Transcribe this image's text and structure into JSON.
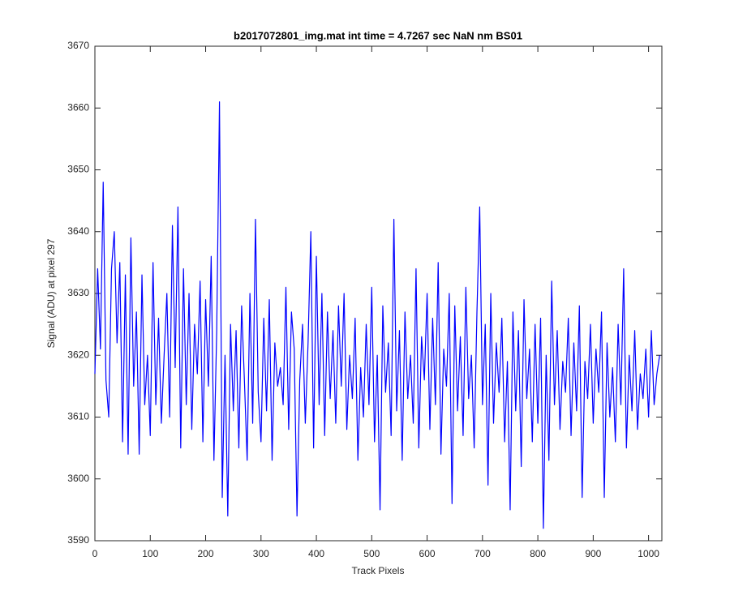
{
  "chart_data": {
    "type": "line",
    "title": "b2017072801_img.mat int time = 4.7267 sec  NaN nm BS01",
    "xlabel": "Track Pixels",
    "ylabel": "Signal (ADU) at pixel 297",
    "xlim": [
      0,
      1024
    ],
    "xticks": [
      0,
      100,
      200,
      300,
      400,
      500,
      600,
      700,
      800,
      900,
      1000
    ],
    "ylim": [
      3590,
      3670
    ],
    "yticks": [
      3590,
      3600,
      3610,
      3620,
      3630,
      3640,
      3650,
      3660,
      3670
    ],
    "grid": false,
    "x": [
      0,
      5,
      10,
      15,
      20,
      25,
      30,
      35,
      40,
      45,
      50,
      55,
      60,
      65,
      70,
      75,
      80,
      85,
      90,
      95,
      100,
      105,
      110,
      115,
      120,
      125,
      130,
      135,
      140,
      145,
      150,
      155,
      160,
      165,
      170,
      175,
      180,
      185,
      190,
      195,
      200,
      205,
      210,
      215,
      220,
      225,
      230,
      235,
      240,
      245,
      250,
      255,
      260,
      265,
      270,
      275,
      280,
      285,
      290,
      295,
      300,
      305,
      310,
      315,
      320,
      325,
      330,
      335,
      340,
      345,
      350,
      355,
      360,
      365,
      370,
      375,
      380,
      385,
      390,
      395,
      400,
      405,
      410,
      415,
      420,
      425,
      430,
      435,
      440,
      445,
      450,
      455,
      460,
      465,
      470,
      475,
      480,
      485,
      490,
      495,
      500,
      505,
      510,
      515,
      520,
      525,
      530,
      535,
      540,
      545,
      550,
      555,
      560,
      565,
      570,
      575,
      580,
      585,
      590,
      595,
      600,
      605,
      610,
      615,
      620,
      625,
      630,
      635,
      640,
      645,
      650,
      655,
      660,
      665,
      670,
      675,
      680,
      685,
      690,
      695,
      700,
      705,
      710,
      715,
      720,
      725,
      730,
      735,
      740,
      745,
      750,
      755,
      760,
      765,
      770,
      775,
      780,
      785,
      790,
      795,
      800,
      805,
      810,
      815,
      820,
      825,
      830,
      835,
      840,
      845,
      850,
      855,
      860,
      865,
      870,
      875,
      880,
      885,
      890,
      895,
      900,
      905,
      910,
      915,
      920,
      925,
      930,
      935,
      940,
      945,
      950,
      955,
      960,
      965,
      970,
      975,
      980,
      985,
      990,
      995,
      1000,
      1005,
      1010,
      1015,
      1020
    ],
    "series": [
      {
        "color": "#0000ff",
        "values": [
          3617,
          3634,
          3621,
          3648,
          3616,
          3610,
          3634,
          3640,
          3622,
          3635,
          3606,
          3633,
          3604,
          3639,
          3615,
          3627,
          3604,
          3633,
          3612,
          3620,
          3607,
          3635,
          3612,
          3626,
          3609,
          3620,
          3630,
          3610,
          3641,
          3618,
          3644,
          3605,
          3634,
          3612,
          3630,
          3608,
          3625,
          3617,
          3632,
          3606,
          3629,
          3615,
          3636,
          3603,
          3624,
          3661,
          3597,
          3620,
          3594,
          3625,
          3611,
          3624,
          3605,
          3628,
          3616,
          3603,
          3630,
          3609,
          3642,
          3614,
          3606,
          3626,
          3611,
          3629,
          3603,
          3622,
          3615,
          3618,
          3612,
          3631,
          3608,
          3627,
          3621,
          3594,
          3616,
          3625,
          3609,
          3622,
          3640,
          3605,
          3636,
          3612,
          3630,
          3607,
          3627,
          3613,
          3624,
          3609,
          3628,
          3615,
          3630,
          3608,
          3620,
          3613,
          3626,
          3603,
          3618,
          3610,
          3625,
          3612,
          3631,
          3606,
          3620,
          3595,
          3628,
          3614,
          3622,
          3607,
          3642,
          3611,
          3624,
          3603,
          3627,
          3613,
          3620,
          3609,
          3634,
          3605,
          3623,
          3616,
          3630,
          3608,
          3626,
          3612,
          3635,
          3604,
          3621,
          3615,
          3630,
          3596,
          3628,
          3611,
          3623,
          3607,
          3631,
          3613,
          3620,
          3605,
          3627,
          3644,
          3612,
          3625,
          3599,
          3630,
          3609,
          3622,
          3614,
          3626,
          3606,
          3619,
          3595,
          3627,
          3611,
          3624,
          3602,
          3629,
          3613,
          3621,
          3606,
          3625,
          3609,
          3626,
          3592,
          3620,
          3603,
          3632,
          3612,
          3624,
          3608,
          3619,
          3614,
          3626,
          3607,
          3622,
          3611,
          3628,
          3597,
          3619,
          3613,
          3625,
          3609,
          3621,
          3614,
          3627,
          3597,
          3622,
          3610,
          3618,
          3606,
          3625,
          3612,
          3634,
          3605,
          3620,
          3611,
          3624,
          3608,
          3617,
          3613,
          3621,
          3610,
          3624,
          3612,
          3617,
          3620
        ]
      }
    ]
  }
}
